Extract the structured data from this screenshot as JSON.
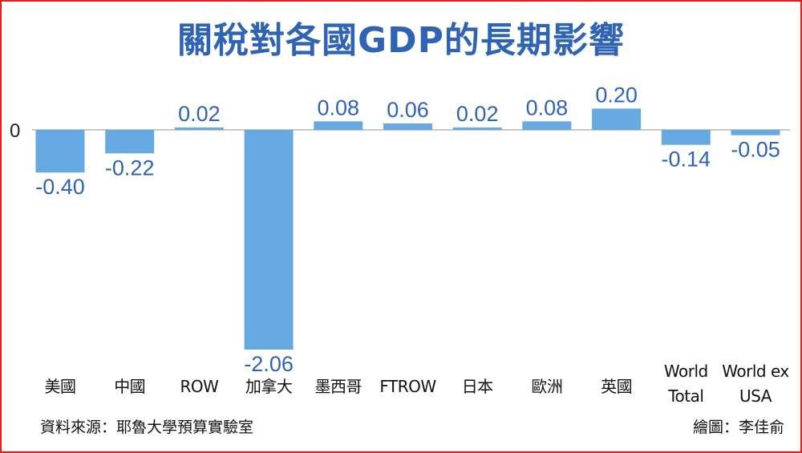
{
  "title": "關稅對各國GDP的長期影響",
  "colors": {
    "title": "#2f63b3",
    "bar": "#66a9e3",
    "value_label": "#2f63b3",
    "frame": "#e0201f"
  },
  "source": "資料來源：耶魯大學預算實驗室",
  "credit": "繪圖：李佳俞",
  "chart_data": {
    "type": "bar",
    "title": "關稅對各國GDP的長期影響",
    "xlabel": "",
    "ylabel": "",
    "y_tick_labels": [
      "0"
    ],
    "ylim": [
      -2.1,
      0.3
    ],
    "grid": false,
    "legend": "none",
    "categories": [
      [
        "美國"
      ],
      [
        "中國"
      ],
      [
        "ROW"
      ],
      [
        "加拿大"
      ],
      [
        "墨西哥"
      ],
      [
        "FTROW"
      ],
      [
        "日本"
      ],
      [
        "歐洲"
      ],
      [
        "英國"
      ],
      [
        "World",
        "Total"
      ],
      [
        "World ex",
        "USA"
      ]
    ],
    "values": [
      -0.4,
      -0.22,
      0.02,
      -2.06,
      0.08,
      0.06,
      0.02,
      0.08,
      0.2,
      -0.14,
      -0.05
    ],
    "value_labels": [
      "-0.40",
      "-0.22",
      "0.02",
      "-2.06",
      "0.08",
      "0.06",
      "0.02",
      "0.08",
      "0.20",
      "-0.14",
      "-0.05"
    ]
  }
}
